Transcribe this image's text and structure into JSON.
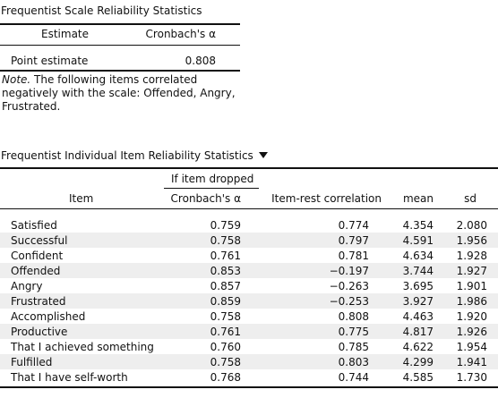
{
  "table1": {
    "title": "Frequentist Scale Reliability Statistics",
    "headers": {
      "estimate": "Estimate",
      "alpha": "Cronbach's α"
    },
    "row": {
      "estimate": "Point estimate",
      "alpha": "0.808"
    },
    "note_label": "Note.",
    "note_line1": " The following items correlated",
    "note_line2": "negatively with the scale: Offended, Angry,",
    "note_line3": "Frustrated."
  },
  "table2": {
    "title": "Frequentist Individual Item Reliability Statistics",
    "group_header": "If item dropped",
    "headers": {
      "item": "Item",
      "alpha": "Cronbach's α",
      "irc": "Item-rest correlation",
      "mean": "mean",
      "sd": "sd"
    },
    "rows": [
      {
        "item": "Satisfied",
        "alpha": "0.759",
        "irc": "0.774",
        "mean": "4.354",
        "sd": "2.080"
      },
      {
        "item": "Successful",
        "alpha": "0.758",
        "irc": "0.797",
        "mean": "4.591",
        "sd": "1.956"
      },
      {
        "item": "Confident",
        "alpha": "0.761",
        "irc": "0.781",
        "mean": "4.634",
        "sd": "1.928"
      },
      {
        "item": "Offended",
        "alpha": "0.853",
        "irc": "−0.197",
        "mean": "3.744",
        "sd": "1.927"
      },
      {
        "item": "Angry",
        "alpha": "0.857",
        "irc": "−0.263",
        "mean": "3.695",
        "sd": "1.901"
      },
      {
        "item": "Frustrated",
        "alpha": "0.859",
        "irc": "−0.253",
        "mean": "3.927",
        "sd": "1.986"
      },
      {
        "item": "Accomplished",
        "alpha": "0.758",
        "irc": "0.808",
        "mean": "4.463",
        "sd": "1.920"
      },
      {
        "item": "Productive",
        "alpha": "0.761",
        "irc": "0.775",
        "mean": "4.817",
        "sd": "1.926"
      },
      {
        "item": "That I achieved something",
        "alpha": "0.760",
        "irc": "0.785",
        "mean": "4.622",
        "sd": "1.954"
      },
      {
        "item": "Fulfilled",
        "alpha": "0.758",
        "irc": "0.803",
        "mean": "4.299",
        "sd": "1.941"
      },
      {
        "item": "That I have self-worth",
        "alpha": "0.768",
        "irc": "0.744",
        "mean": "4.585",
        "sd": "1.730"
      }
    ]
  }
}
